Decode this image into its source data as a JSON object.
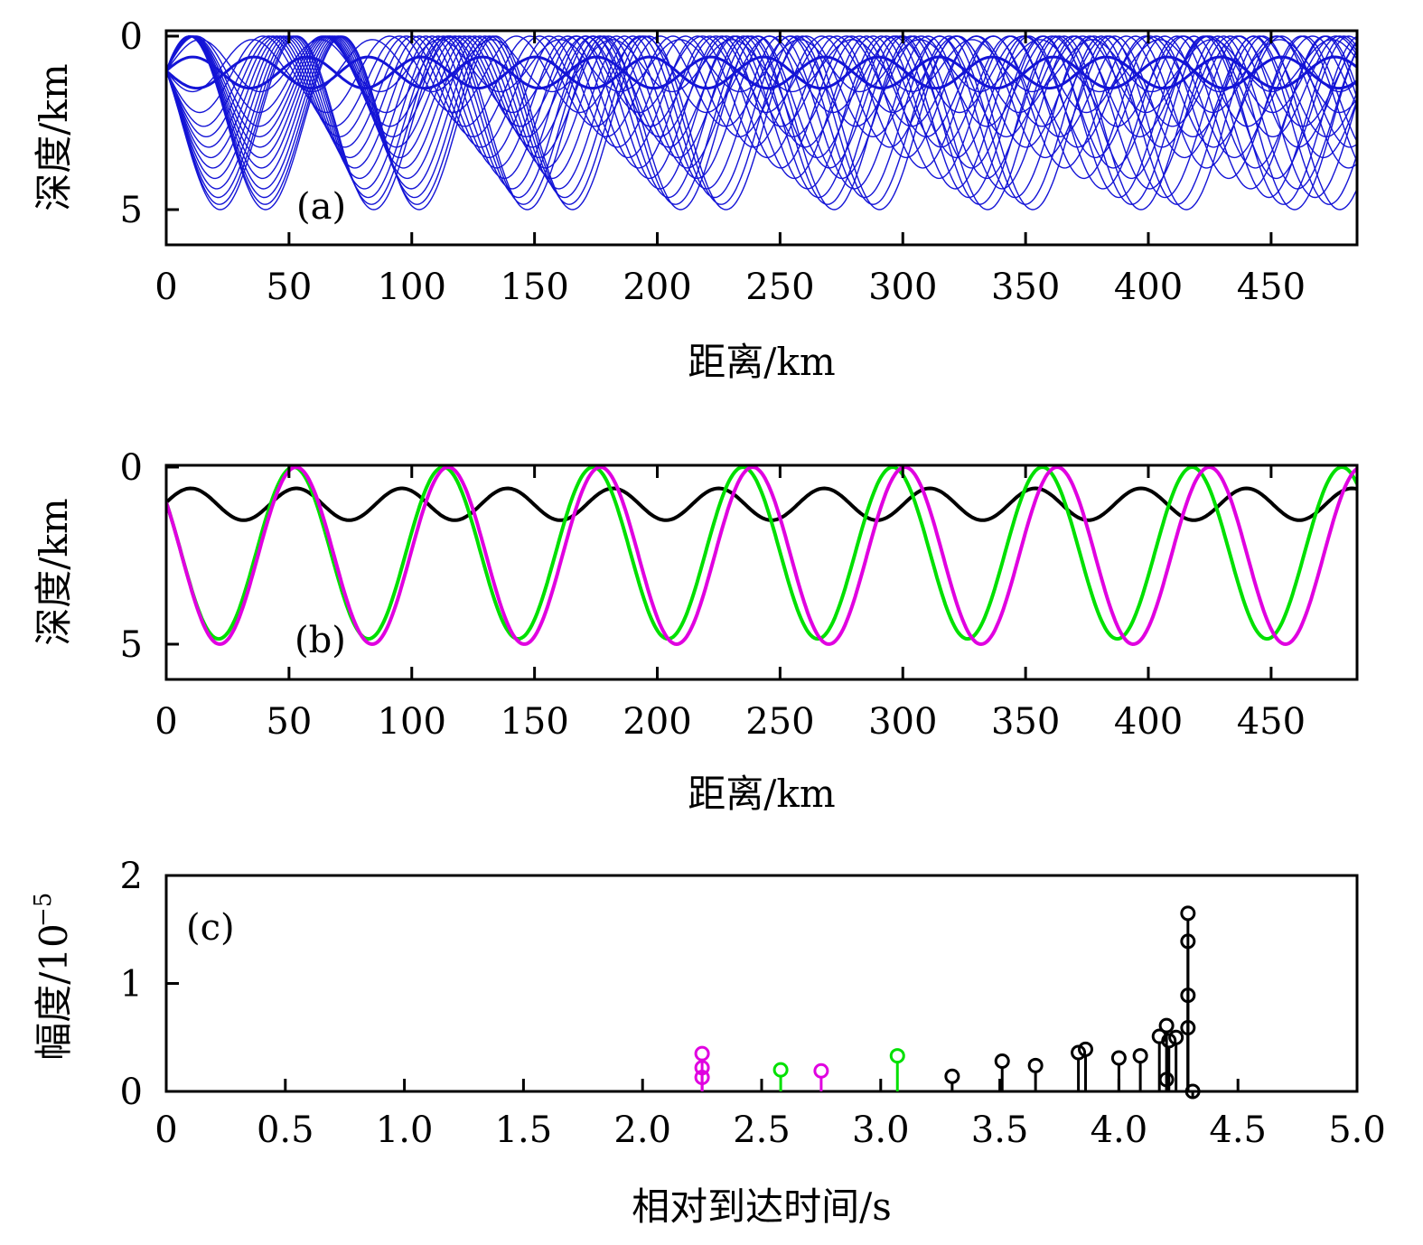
{
  "chart_data": [
    {
      "type": "line",
      "panel_label": "(a)",
      "xlabel": "距离/km",
      "ylabel": "深度/km",
      "xlim": [
        0,
        485
      ],
      "ylim": [
        0,
        6
      ],
      "y_inverted": true,
      "x_ticks": [
        "0",
        "50",
        "100",
        "150",
        "200",
        "250",
        "300",
        "350",
        "400",
        "450"
      ],
      "y_ticks": [
        "0",
        "5"
      ],
      "x_tick_values": [
        0,
        50,
        100,
        150,
        200,
        250,
        300,
        350,
        400,
        450
      ],
      "y_tick_values": [
        0,
        5
      ],
      "line_color": "#1414d6",
      "source_depth": 1.0,
      "ray_family": [
        {
          "turning_depth": 0.6,
          "deep_turning": 1.5
        },
        {
          "turning_depth": 0.1,
          "deep_turning": 1.6
        },
        {
          "turning_depth": 0.0,
          "deep_turning": 2.2
        },
        {
          "turning_depth": 0.0,
          "deep_turning": 2.6
        },
        {
          "turning_depth": 0.0,
          "deep_turning": 2.9
        },
        {
          "turning_depth": 0.0,
          "deep_turning": 3.2
        },
        {
          "turning_depth": 0.0,
          "deep_turning": 3.5
        },
        {
          "turning_depth": 0.0,
          "deep_turning": 3.8
        },
        {
          "turning_depth": 0.0,
          "deep_turning": 4.1
        },
        {
          "turning_depth": 0.0,
          "deep_turning": 4.4
        },
        {
          "turning_depth": 0.0,
          "deep_turning": 4.65
        },
        {
          "turning_depth": 0.0,
          "deep_turning": 4.85
        },
        {
          "turning_depth": 0.0,
          "deep_turning": 5.0
        }
      ]
    },
    {
      "type": "line",
      "panel_label": "(b)",
      "xlabel": "距离/km",
      "ylabel": "深度/km",
      "xlim": [
        0,
        485
      ],
      "ylim": [
        0,
        6
      ],
      "y_inverted": true,
      "x_ticks": [
        "0",
        "50",
        "100",
        "150",
        "200",
        "250",
        "300",
        "350",
        "400",
        "450"
      ],
      "y_ticks": [
        "0",
        "5"
      ],
      "x_tick_values": [
        0,
        50,
        100,
        150,
        200,
        250,
        300,
        350,
        400,
        450
      ],
      "y_tick_values": [
        0,
        5
      ],
      "series": [
        {
          "color": "#000000",
          "shallow": 0.6,
          "deep": 1.5,
          "period": 43,
          "start": 1.0
        },
        {
          "color": "#00e000",
          "shallow": 0.0,
          "deep": 4.85,
          "period": 61,
          "start": 1.0
        },
        {
          "color": "#e000e0",
          "shallow": 0.0,
          "deep": 5.0,
          "period": 62,
          "start": 1.0
        }
      ]
    },
    {
      "type": "stem",
      "panel_label": "(c)",
      "xlabel": "相对到达时间/s",
      "ylabel": "幅度/10",
      "ylabel_exponent": "−5",
      "xlim": [
        0,
        5.0
      ],
      "ylim": [
        0,
        2
      ],
      "x_ticks": [
        "0",
        "0.5",
        "1.0",
        "1.5",
        "2.0",
        "2.5",
        "3.0",
        "3.5",
        "4.0",
        "4.5",
        "5.0"
      ],
      "x_tick_values": [
        0,
        0.5,
        1.0,
        1.5,
        2.0,
        2.5,
        3.0,
        3.5,
        4.0,
        4.5,
        5.0
      ],
      "y_ticks": [
        "0",
        "1",
        "2"
      ],
      "y_tick_values": [
        0,
        1,
        2
      ],
      "stems": [
        {
          "t": 2.25,
          "amp": 0.35,
          "color": "#e000e0"
        },
        {
          "t": 2.25,
          "amp": 0.22,
          "color": "#e000e0"
        },
        {
          "t": 2.25,
          "amp": 0.13,
          "color": "#e000e0"
        },
        {
          "t": 2.58,
          "amp": 0.2,
          "color": "#00e000"
        },
        {
          "t": 2.75,
          "amp": 0.19,
          "color": "#e000e0"
        },
        {
          "t": 3.07,
          "amp": 0.33,
          "color": "#00e000"
        },
        {
          "t": 3.3,
          "amp": 0.14,
          "color": "#000000"
        },
        {
          "t": 3.51,
          "amp": 0.28,
          "color": "#000000"
        },
        {
          "t": 3.65,
          "amp": 0.24,
          "color": "#000000"
        },
        {
          "t": 3.83,
          "amp": 0.36,
          "color": "#000000"
        },
        {
          "t": 3.86,
          "amp": 0.39,
          "color": "#000000"
        },
        {
          "t": 4.0,
          "amp": 0.31,
          "color": "#000000"
        },
        {
          "t": 4.09,
          "amp": 0.33,
          "color": "#000000"
        },
        {
          "t": 4.17,
          "amp": 0.51,
          "color": "#000000"
        },
        {
          "t": 4.2,
          "amp": 0.61,
          "color": "#000000"
        },
        {
          "t": 4.2,
          "amp": 0.11,
          "color": "#000000"
        },
        {
          "t": 4.21,
          "amp": 0.47,
          "color": "#000000"
        },
        {
          "t": 4.24,
          "amp": 0.5,
          "color": "#000000"
        },
        {
          "t": 4.29,
          "amp": 1.65,
          "color": "#000000"
        },
        {
          "t": 4.29,
          "amp": 1.39,
          "color": "#000000"
        },
        {
          "t": 4.29,
          "amp": 0.89,
          "color": "#000000"
        },
        {
          "t": 4.29,
          "amp": 0.59,
          "color": "#000000"
        },
        {
          "t": 4.31,
          "amp": 0.0,
          "color": "#000000"
        }
      ]
    }
  ]
}
